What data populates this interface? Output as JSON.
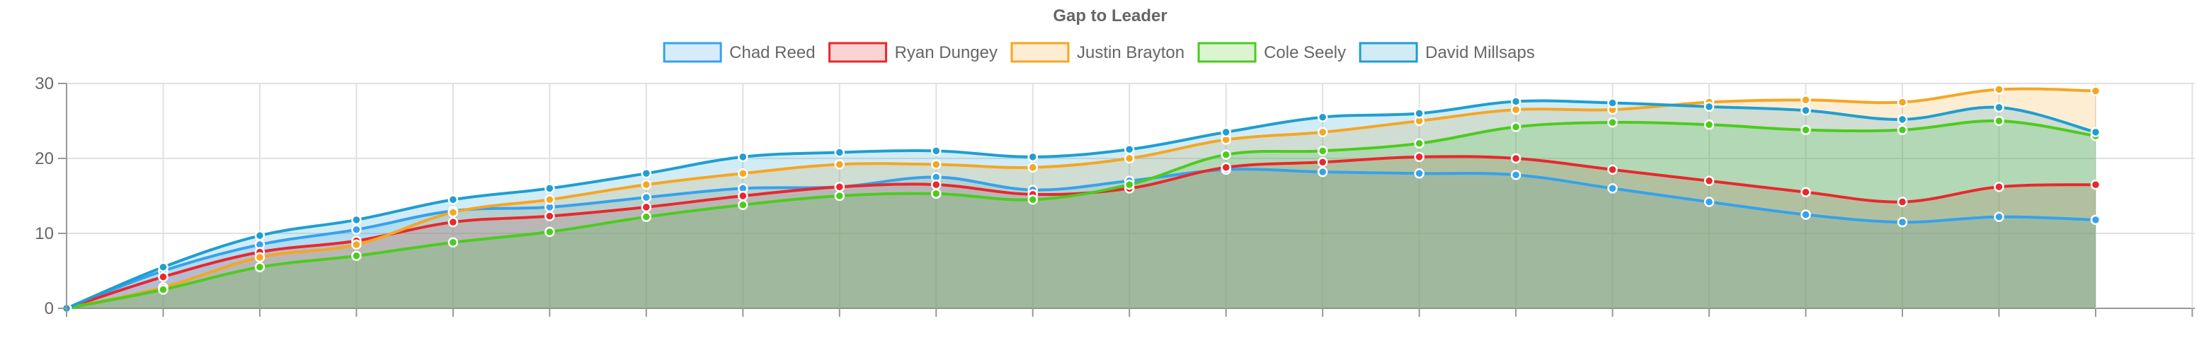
{
  "chart_data": {
    "type": "area",
    "title": "Gap to Leader",
    "legend_position": "top",
    "grid": true,
    "ylim": [
      0,
      30
    ],
    "y_ticks": [
      "0",
      "10",
      "20",
      "30"
    ],
    "x_count": 22,
    "series": [
      {
        "name": "Chad Reed",
        "color": "#36a2eb",
        "values": [
          0,
          5.0,
          8.5,
          10.5,
          13.0,
          13.5,
          14.8,
          16.0,
          16.2,
          17.5,
          15.8,
          17.0,
          18.5,
          18.2,
          18.0,
          17.8,
          16.0,
          14.2,
          12.5,
          11.5,
          12.2,
          11.8
        ]
      },
      {
        "name": "Ryan Dungey",
        "color": "#e8282e",
        "values": [
          0,
          4.2,
          7.5,
          9.0,
          11.5,
          12.3,
          13.5,
          15.0,
          16.2,
          16.5,
          15.2,
          16.0,
          18.8,
          19.5,
          20.2,
          20.0,
          18.5,
          17.0,
          15.5,
          14.2,
          16.2,
          16.5
        ]
      },
      {
        "name": "Justin Brayton",
        "color": "#f5a623",
        "values": [
          0,
          2.8,
          6.8,
          8.5,
          12.8,
          14.5,
          16.5,
          18.0,
          19.2,
          19.2,
          18.8,
          20.0,
          22.5,
          23.5,
          25.0,
          26.5,
          26.5,
          27.5,
          27.8,
          27.5,
          29.2,
          29.0
        ]
      },
      {
        "name": "Cole Seely",
        "color": "#4ccb1f",
        "values": [
          0,
          2.5,
          5.5,
          7.0,
          8.8,
          10.2,
          12.2,
          13.8,
          15.0,
          15.3,
          14.5,
          16.5,
          20.5,
          21.0,
          22.0,
          24.2,
          24.8,
          24.5,
          23.8,
          23.8,
          25.0,
          23.0
        ]
      },
      {
        "name": "David Millsaps",
        "color": "#1f9ed1",
        "values": [
          0,
          5.5,
          9.7,
          11.8,
          14.5,
          16.0,
          18.0,
          20.2,
          20.8,
          21.0,
          20.2,
          21.2,
          23.5,
          25.5,
          26.0,
          27.6,
          27.4,
          26.9,
          26.4,
          25.2,
          26.8,
          23.5
        ]
      }
    ]
  }
}
